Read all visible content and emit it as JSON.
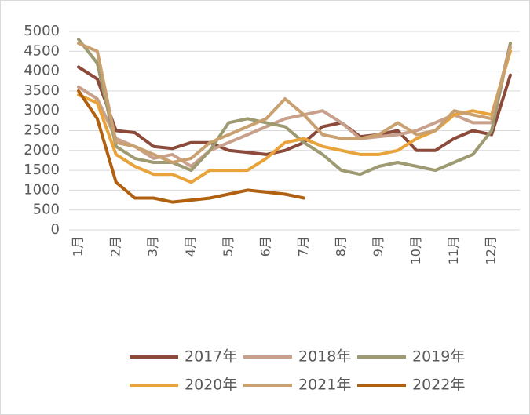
{
  "chart_data": {
    "type": "line",
    "categories": [
      "1月",
      null,
      "2月",
      null,
      "3月",
      null,
      "4月",
      null,
      "5月",
      null,
      "6月",
      null,
      "7月",
      null,
      "8月",
      null,
      "9月",
      null,
      "10月",
      null,
      "11月",
      null,
      "12月",
      null
    ],
    "series": [
      {
        "name": "2017年",
        "color": "#8c4a3a",
        "values": [
          4100,
          3800,
          2500,
          2450,
          2100,
          2050,
          2200,
          2200,
          2000,
          1950,
          1900,
          2000,
          2200,
          2600,
          2700,
          2350,
          2400,
          2500,
          2000,
          2000,
          2300,
          2500,
          2400,
          3900
        ]
      },
      {
        "name": "2018年",
        "color": "#c8a08c",
        "values": [
          3600,
          3300,
          2300,
          2100,
          1800,
          1900,
          1600,
          2000,
          2200,
          2400,
          2600,
          2800,
          2900,
          3000,
          2700,
          2300,
          2350,
          2400,
          2500,
          2700,
          2900,
          2700,
          2700,
          4700
        ]
      },
      {
        "name": "2019年",
        "color": "#9e9a72",
        "values": [
          4800,
          4200,
          2100,
          1800,
          1700,
          1700,
          1500,
          2000,
          2700,
          2800,
          2700,
          2600,
          2200,
          1900,
          1500,
          1400,
          1600,
          1700,
          1600,
          1500,
          1700,
          1900,
          2500,
          4700
        ]
      },
      {
        "name": "2020年",
        "color": "#e8a33a",
        "values": [
          3400,
          3200,
          1900,
          1600,
          1400,
          1400,
          1200,
          1500,
          1500,
          1500,
          1800,
          2200,
          2300,
          2100,
          2000,
          1900,
          1900,
          2000,
          2300,
          2500,
          2900,
          3000,
          2900,
          4500
        ]
      },
      {
        "name": "2021年",
        "color": "#c9a070",
        "values": [
          4700,
          4500,
          2200,
          2100,
          1900,
          1700,
          1800,
          2200,
          2400,
          2600,
          2800,
          3300,
          2900,
          2400,
          2300,
          2300,
          2400,
          2700,
          2400,
          2500,
          3000,
          2900,
          2800,
          4600
        ]
      },
      {
        "name": "2022年",
        "color": "#b0600f",
        "values": [
          3500,
          2800,
          1200,
          800,
          800,
          700,
          750,
          800,
          900,
          1000,
          950,
          900,
          800,
          null,
          null,
          null,
          null,
          null,
          null,
          null,
          null,
          null,
          null,
          null
        ]
      }
    ],
    "ylim": [
      0,
      5000
    ],
    "yticks": [
      0,
      500,
      1000,
      1500,
      2000,
      2500,
      3000,
      3500,
      4000,
      4500,
      5000
    ],
    "grid": true
  }
}
